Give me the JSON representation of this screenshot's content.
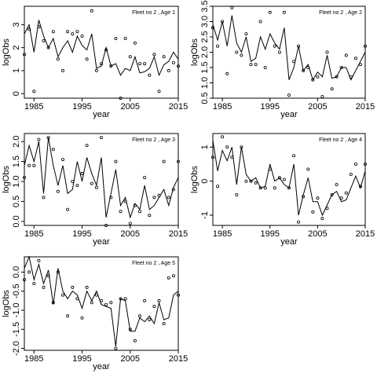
{
  "chart_data": [
    {
      "type": "scatter",
      "title": "Fleet no 2 , Age 1",
      "xlabel": "year",
      "ylabel": "logObs",
      "xlim": [
        1983,
        2015
      ],
      "ylim": [
        -0.2,
        3.8
      ],
      "x_ticks": [
        1985,
        1995,
        2005,
        2015
      ],
      "y_ticks": [
        0,
        1,
        2,
        3
      ],
      "x": [
        1983,
        1984,
        1985,
        1986,
        1987,
        1988,
        1989,
        1990,
        1991,
        1992,
        1993,
        1994,
        1995,
        1996,
        1997,
        1998,
        1999,
        2000,
        2001,
        2002,
        2003,
        2004,
        2005,
        2006,
        2007,
        2008,
        2009,
        2010,
        2011,
        2012,
        2013,
        2014,
        2015
      ],
      "observed": [
        1.7,
        2.8,
        0.1,
        2.9,
        2.3,
        2.0,
        2.7,
        1.5,
        1.0,
        2.7,
        2.6,
        2.7,
        2.5,
        1.5,
        3.6,
        1.0,
        1.3,
        1.9,
        1.2,
        2.4,
        -0.2,
        2.4,
        1.6,
        2.2,
        1.3,
        1.3,
        0.8,
        1.7,
        0.1,
        1.6,
        1.0,
        1.35,
        1.2
      ],
      "fitted": [
        2.6,
        3.0,
        1.8,
        3.2,
        2.5,
        2.0,
        2.4,
        1.6,
        2.0,
        2.3,
        1.8,
        2.5,
        2.1,
        1.9,
        2.6,
        1.1,
        1.2,
        2.0,
        1.2,
        1.3,
        0.8,
        1.1,
        1.0,
        1.6,
        0.9,
        0.95,
        1.1,
        1.6,
        0.8,
        1.25,
        1.4,
        1.8,
        1.5
      ]
    },
    {
      "type": "scatter",
      "title": "Fleet no 2 , Age 2",
      "xlabel": "year",
      "ylabel": "logObs",
      "xlim": [
        1983,
        2015
      ],
      "ylim": [
        0.5,
        3.5
      ],
      "x_ticks": [
        1985,
        1995,
        2005,
        2015
      ],
      "y_ticks": [
        0.5,
        1.0,
        1.5,
        2.0,
        2.5,
        3.0,
        3.5
      ],
      "x": [
        1983,
        1984,
        1985,
        1986,
        1987,
        1988,
        1989,
        1990,
        1991,
        1992,
        1993,
        1994,
        1995,
        1996,
        1997,
        1998,
        1999,
        2000,
        2001,
        2002,
        2003,
        2004,
        2005,
        2006,
        2007,
        2008,
        2009,
        2010,
        2011,
        2012,
        2013,
        2014,
        2015
      ],
      "observed": [
        2.8,
        2.2,
        3.0,
        1.3,
        3.45,
        2.0,
        1.9,
        2.6,
        1.6,
        1.6,
        3.0,
        1.5,
        3.3,
        2.2,
        2.0,
        3.3,
        0.6,
        1.7,
        2.2,
        1.4,
        1.5,
        1.1,
        1.2,
        0.55,
        2.0,
        0.8,
        1.2,
        1.5,
        1.9,
        1.2,
        1.8,
        1.6,
        2.2
      ],
      "fitted": [
        2.9,
        2.4,
        3.0,
        2.2,
        3.2,
        2.3,
        2.0,
        2.5,
        1.7,
        1.8,
        2.5,
        2.1,
        2.6,
        2.3,
        2.1,
        2.8,
        1.1,
        1.5,
        2.2,
        1.4,
        1.6,
        1.1,
        1.35,
        1.2,
        1.9,
        1.15,
        1.2,
        1.5,
        1.5,
        1.1,
        1.4,
        1.7,
        2.0
      ]
    },
    {
      "type": "scatter",
      "title": "Fleet no 2 , Age 3",
      "xlabel": "year",
      "ylabel": "logObs",
      "xlim": [
        1983,
        2015
      ],
      "ylim": [
        -0.1,
        2.2
      ],
      "x_ticks": [
        1985,
        1995,
        2005,
        2015
      ],
      "y_ticks": [
        0.0,
        0.5,
        1.0,
        1.5,
        2.0
      ],
      "x": [
        1983,
        1984,
        1985,
        1986,
        1987,
        1988,
        1989,
        1990,
        1991,
        1992,
        1993,
        1994,
        1995,
        1996,
        1997,
        1998,
        1999,
        2000,
        2001,
        2002,
        2003,
        2004,
        2005,
        2006,
        2007,
        2008,
        2009,
        2010,
        2011,
        2012,
        2013,
        2014,
        2015
      ],
      "observed": [
        1.1,
        1.4,
        1.4,
        2.05,
        0.6,
        2.1,
        1.8,
        0.75,
        1.55,
        0.3,
        1.0,
        0.9,
        1.2,
        1.9,
        0.95,
        0.85,
        2.1,
        -0.1,
        0.6,
        1.5,
        0.25,
        0.5,
        -0.05,
        0.4,
        0.25,
        1.1,
        0.15,
        0.6,
        0.65,
        1.5,
        0.6,
        0.8,
        1.5
      ],
      "fitted": [
        1.4,
        1.9,
        1.5,
        2.0,
        0.7,
        2.1,
        1.4,
        0.9,
        1.4,
        0.7,
        0.8,
        1.5,
        1.0,
        1.6,
        1.2,
        0.9,
        1.6,
        0.1,
        0.7,
        1.3,
        0.4,
        0.6,
        0.1,
        0.45,
        0.3,
        0.9,
        0.3,
        0.4,
        0.6,
        0.8,
        0.4,
        0.85,
        1.1
      ]
    },
    {
      "type": "scatter",
      "title": "Fleet no 2 , Age 4",
      "xlabel": "year",
      "ylabel": "logObs",
      "xlim": [
        1983,
        2015
      ],
      "ylim": [
        -1.3,
        1.4
      ],
      "x_ticks": [
        1985,
        1995,
        2005,
        2015
      ],
      "y_ticks": [
        -1.0,
        0.0,
        1.0
      ],
      "x": [
        1983,
        1984,
        1985,
        1986,
        1987,
        1988,
        1989,
        1990,
        1991,
        1992,
        1993,
        1994,
        1995,
        1996,
        1997,
        1998,
        1999,
        2000,
        2001,
        2002,
        2003,
        2004,
        2005,
        2006,
        2007,
        2008,
        2009,
        2010,
        2011,
        2012,
        2013,
        2014,
        2015
      ],
      "observed": [
        0.7,
        -0.15,
        1.3,
        1.0,
        0.7,
        -0.4,
        1.0,
        0.0,
        0.0,
        -0.05,
        -0.2,
        -0.2,
        0.35,
        -0.2,
        0.1,
        0.05,
        -0.2,
        0.75,
        -1.2,
        -0.45,
        0.35,
        -0.9,
        -0.5,
        -1.1,
        -0.8,
        -0.4,
        -0.1,
        -0.5,
        -0.35,
        0.2,
        0.5,
        -0.15,
        0.5
      ],
      "fitted": [
        1.2,
        0.3,
        0.9,
        0.6,
        1.0,
        -0.1,
        1.0,
        0.2,
        0.0,
        0.1,
        -0.2,
        -0.15,
        0.5,
        0.0,
        0.1,
        -0.1,
        -0.2,
        0.5,
        -1.0,
        -0.4,
        0.1,
        -0.6,
        -0.6,
        -1.0,
        -0.7,
        -0.4,
        -0.3,
        -0.6,
        -0.55,
        -0.2,
        0.15,
        -0.2,
        0.3
      ]
    },
    {
      "type": "scatter",
      "title": "Fleet no 2 , Age 5",
      "xlabel": "year",
      "ylabel": "logObs",
      "xlim": [
        1983,
        2015
      ],
      "ylim": [
        -2.05,
        0.4
      ],
      "x_ticks": [
        1985,
        1995,
        2005,
        2015
      ],
      "y_ticks": [
        -2.0,
        -1.5,
        -1.0,
        -0.5,
        0.0
      ],
      "x": [
        1983,
        1984,
        1985,
        1986,
        1987,
        1988,
        1989,
        1990,
        1991,
        1992,
        1993,
        1994,
        1995,
        1996,
        1997,
        1998,
        1999,
        2000,
        2001,
        2002,
        2003,
        2004,
        2005,
        2006,
        2007,
        2008,
        2009,
        2010,
        2011,
        2012,
        2013,
        2014,
        2015
      ],
      "observed": [
        -0.2,
        0.0,
        -0.3,
        0.3,
        -0.4,
        -0.1,
        -0.8,
        0.0,
        -0.6,
        -1.15,
        -0.4,
        -0.7,
        -1.2,
        -0.4,
        -0.8,
        -0.6,
        -0.75,
        -0.85,
        -0.8,
        -2.0,
        -0.7,
        -0.7,
        -1.5,
        -1.8,
        -1.15,
        -0.75,
        -1.25,
        -0.9,
        -0.75,
        -1.35,
        -0.15,
        -0.1,
        -0.6
      ],
      "fitted": [
        0.1,
        0.4,
        -0.2,
        0.2,
        -0.3,
        0.05,
        -0.85,
        0.1,
        -0.5,
        -0.7,
        -0.5,
        -0.6,
        -0.95,
        -0.5,
        -0.75,
        -0.5,
        -0.85,
        -0.9,
        -0.95,
        -1.95,
        -0.7,
        -0.75,
        -1.55,
        -1.55,
        -1.2,
        -1.3,
        -1.15,
        -1.35,
        -0.8,
        -1.25,
        -1.2,
        -0.6,
        -0.5
      ]
    }
  ]
}
